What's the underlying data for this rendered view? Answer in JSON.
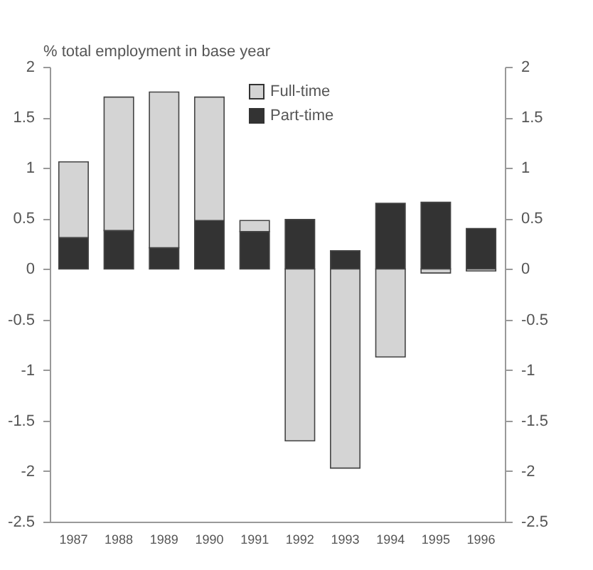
{
  "chart_data": {
    "type": "bar",
    "stacked": true,
    "ylabel": "% total employment in base year",
    "categories": [
      "1987",
      "1988",
      "1989",
      "1990",
      "1991",
      "1992",
      "1993",
      "1994",
      "1995",
      "1996"
    ],
    "series": [
      {
        "name": "Part-time",
        "color": "#333333",
        "values": [
          0.31,
          0.38,
          0.21,
          0.48,
          0.37,
          0.49,
          0.18,
          0.65,
          0.66,
          0.4
        ]
      },
      {
        "name": "Full-time",
        "color": "#d4d4d4",
        "values": [
          0.75,
          1.32,
          1.54,
          1.22,
          0.11,
          -1.7,
          -1.97,
          -0.87,
          -0.04,
          -0.02
        ]
      }
    ],
    "ylim": [
      -2.5,
      2
    ],
    "yticks": [
      -2.5,
      -2,
      -1.5,
      -1,
      -0.5,
      0,
      0.5,
      1,
      1.5,
      2
    ],
    "y2lim": [
      -2.5,
      2
    ],
    "y2ticks": [
      -2.5,
      -2,
      -1.5,
      -1,
      -0.5,
      0,
      0.5,
      1,
      1.5,
      2
    ],
    "legend": "top",
    "grid": false
  }
}
